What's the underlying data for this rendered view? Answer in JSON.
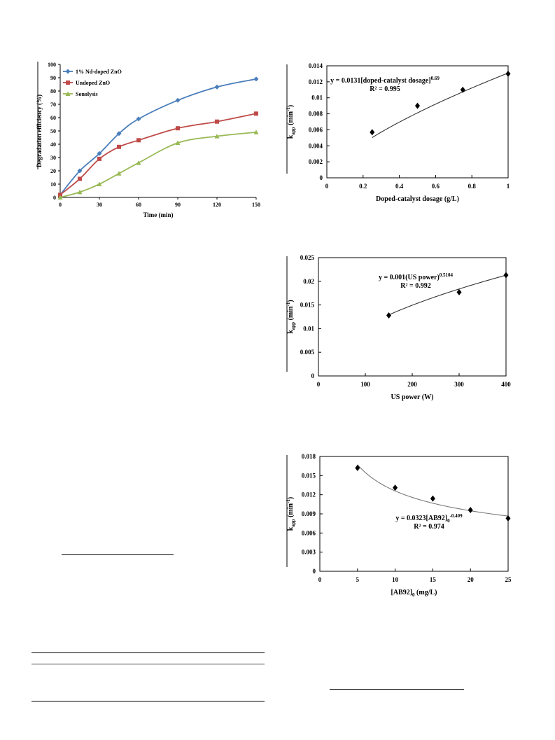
{
  "chart_data": [
    {
      "type": "line",
      "ylabel": "Degradation efficiency (%)",
      "xlabel": "Time (min)",
      "xlim": [
        0,
        150
      ],
      "ylim": [
        0,
        100
      ],
      "x_ticks": [
        "0",
        "30",
        "60",
        "90",
        "120",
        "150"
      ],
      "y_ticks": [
        "0",
        "10",
        "20",
        "30",
        "40",
        "50",
        "60",
        "70",
        "80",
        "90",
        "100"
      ],
      "legend_position": "top-left",
      "grid": false,
      "series": [
        {
          "name": "1% Nd-doped ZnO",
          "color": "#4a7ebb",
          "marker": "diamond",
          "x": [
            0,
            15,
            30,
            45,
            60,
            90,
            120,
            150
          ],
          "y": [
            2,
            20,
            33,
            48,
            59,
            73,
            83,
            89
          ]
        },
        {
          "name": "Undoped ZnO",
          "color": "#be4b48",
          "marker": "square",
          "x": [
            0,
            15,
            30,
            45,
            60,
            90,
            120,
            150
          ],
          "y": [
            2,
            14,
            29,
            38,
            43,
            52,
            57,
            63
          ]
        },
        {
          "name": "Sonolysis",
          "color": "#98b954",
          "marker": "triangle",
          "x": [
            0,
            15,
            30,
            45,
            60,
            90,
            120,
            150
          ],
          "y": [
            0,
            4,
            10,
            18,
            26,
            41,
            46,
            49
          ]
        }
      ]
    },
    {
      "type": "scatter",
      "ylabel": "kapp (min-1)",
      "xlabel": "Doped-catalyst dosage (g/L)",
      "xlim": [
        0,
        1
      ],
      "ylim": [
        0,
        0.014
      ],
      "x_ticks": [
        "0",
        "0.2",
        "0.4",
        "0.6",
        "0.8",
        "1"
      ],
      "y_ticks": [
        "0",
        "0.002",
        "0.004",
        "0.006",
        "0.008",
        "0.01",
        "0.012",
        "0.014"
      ],
      "points": {
        "x": [
          0.25,
          0.5,
          0.75,
          1.0
        ],
        "y": [
          0.0057,
          0.009,
          0.011,
          0.013
        ]
      },
      "fit": {
        "a": 0.0131,
        "b": 0.69
      },
      "equation_prefix": "y = 0.0131[doped-catalyst  dosage]",
      "equation_exponent": "0.69",
      "r_squared": "R² = 0.995"
    },
    {
      "type": "scatter",
      "ylabel": "kapp (min-1)",
      "xlabel": "US power  (W)",
      "xlim": [
        0,
        400
      ],
      "ylim": [
        0,
        0.025
      ],
      "x_ticks": [
        "0",
        "100",
        "200",
        "300",
        "400"
      ],
      "y_ticks": [
        "0",
        "0.005",
        "0.01",
        "0.015",
        "0.02",
        "0.025"
      ],
      "points": {
        "x": [
          150,
          300,
          400
        ],
        "y": [
          0.0128,
          0.0177,
          0.0213
        ]
      },
      "fit": {
        "a": 0.001,
        "b": 0.5104
      },
      "equation_prefix": "y = 0.001(US power)",
      "equation_exponent": "0.5104",
      "r_squared": "R² = 0.992"
    },
    {
      "type": "scatter",
      "ylabel": "kapp (min-1)",
      "xlabel": "[AB92]0 (mg/L)",
      "xlim": [
        0,
        25
      ],
      "ylim": [
        0,
        0.018
      ],
      "x_ticks": [
        "0",
        "5",
        "10",
        "15",
        "20",
        "25"
      ],
      "y_ticks": [
        "0",
        "0.003",
        "0.006",
        "0.009",
        "0.012",
        "0.015",
        "0.018"
      ],
      "points": {
        "x": [
          5,
          10,
          15,
          20,
          25
        ],
        "y": [
          0.0162,
          0.0131,
          0.0114,
          0.0096,
          0.0083
        ]
      },
      "fit": {
        "a": 0.0323,
        "b": -0.409
      },
      "equation_prefix": "y = 0.0323[AB92]",
      "equation_subscript": "0",
      "equation_exponent": "-0.409",
      "r_squared": "R² = 0.974"
    }
  ]
}
